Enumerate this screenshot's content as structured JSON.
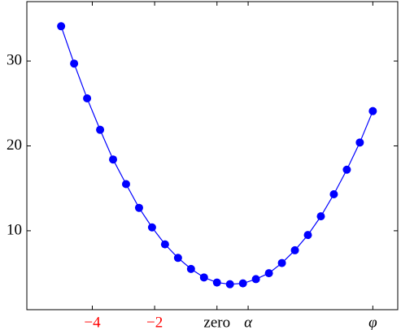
{
  "chart_data": {
    "type": "line",
    "color": "#0000ff",
    "x": [
      -5,
      -4.5833,
      -4.1667,
      -3.75,
      -3.3333,
      -2.9167,
      -2.5,
      -2.0833,
      -1.6667,
      -1.25,
      -0.8333,
      -0.4167,
      0,
      0.4167,
      0.8333,
      1.25,
      1.6667,
      2.0833,
      2.5,
      2.9167,
      3.3333,
      3.75,
      4.1667,
      4.5833,
      5
    ],
    "series": [
      {
        "values": [
          34.1,
          29.7,
          25.6,
          21.9,
          18.4,
          15.5,
          12.7,
          10.4,
          8.4,
          6.8,
          5.5,
          4.5,
          3.9,
          3.7,
          3.8,
          4.3,
          5.0,
          6.2,
          7.7,
          9.5,
          11.7,
          14.3,
          17.2,
          20.4,
          24.1
        ]
      }
    ],
    "xlim": [
      -6.1,
      5.8
    ],
    "ylim": [
      0.7,
      37
    ],
    "xticks": [
      {
        "value": -4,
        "label": "−4"
      },
      {
        "value": -2,
        "label": "−2"
      },
      {
        "value": 0,
        "label": "zero"
      },
      {
        "value": 1,
        "label": "α"
      },
      {
        "value": 5,
        "label": "φ"
      }
    ],
    "xtick_label_colors": [
      "#ff0000",
      "#ff0000",
      "#000000",
      "#000000",
      "#000000"
    ],
    "yticks": [
      10,
      20,
      30
    ]
  }
}
